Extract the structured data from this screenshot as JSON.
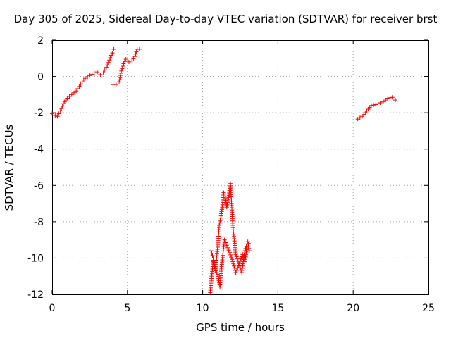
{
  "chart_data": {
    "type": "scatter",
    "title": "Day 305 of 2025, Sidereal Day-to-day VTEC variation (SDTVAR) for receiver brst",
    "xlabel": "GPS time / hours",
    "ylabel": "SDTVAR / TECUs",
    "xlim": [
      0,
      25
    ],
    "ylim": [
      -12,
      2
    ],
    "xticks": [
      0,
      5,
      10,
      15,
      20,
      25
    ],
    "yticks": [
      -12,
      -10,
      -8,
      -6,
      -4,
      -2,
      0,
      2
    ],
    "grid": true,
    "marker": "+",
    "color": "#ff0000",
    "series": [
      {
        "name": "SDTVAR",
        "segments": [
          {
            "x": [
              0.0,
              0.2,
              0.35,
              0.55,
              0.75,
              1.0,
              1.3,
              1.6,
              1.8,
              2.0,
              2.2,
              2.5,
              2.8,
              3.0,
              3.2,
              3.4,
              3.6,
              3.8,
              4.0,
              4.1
            ],
            "y": [
              -2.05,
              -2.15,
              -2.2,
              -1.9,
              -1.5,
              -1.2,
              -1.0,
              -0.8,
              -0.55,
              -0.3,
              -0.1,
              0.05,
              0.2,
              0.25,
              0.1,
              0.2,
              0.5,
              0.9,
              1.3,
              1.5
            ]
          },
          {
            "x": [
              4.05,
              4.25,
              4.45,
              4.6,
              4.75,
              4.9,
              5.1,
              5.3,
              5.5,
              5.65,
              5.8
            ],
            "y": [
              -0.45,
              -0.45,
              -0.3,
              0.3,
              0.7,
              0.95,
              0.8,
              0.85,
              1.1,
              1.5,
              1.5
            ]
          },
          {
            "x": [
              10.5,
              10.6,
              10.7,
              10.85,
              11.0,
              11.1,
              11.2,
              11.3,
              11.4,
              11.5,
              11.6,
              11.7,
              11.85,
              12.0,
              12.2,
              12.4,
              12.6,
              12.8,
              13.0,
              13.1
            ],
            "y": [
              -11.9,
              -11.0,
              -10.2,
              -10.6,
              -9.4,
              -8.2,
              -7.8,
              -7.2,
              -6.4,
              -6.6,
              -7.2,
              -6.8,
              -5.9,
              -8.2,
              -9.8,
              -10.3,
              -10.8,
              -9.6,
              -9.1,
              -9.6
            ]
          },
          {
            "x": [
              10.55,
              10.7,
              10.85,
              11.0,
              11.15,
              11.3,
              11.45,
              11.6,
              11.8,
              12.0,
              12.2,
              12.45,
              12.65,
              12.8,
              12.95,
              13.05
            ],
            "y": [
              -9.6,
              -10.0,
              -10.7,
              -10.9,
              -11.6,
              -10.1,
              -9.0,
              -9.3,
              -9.7,
              -10.2,
              -10.8,
              -10.3,
              -9.8,
              -10.2,
              -9.4,
              -9.2
            ]
          },
          {
            "x": [
              20.3,
              20.6,
              20.9,
              21.2,
              21.5,
              21.8,
              22.0,
              22.3,
              22.6,
              22.8
            ],
            "y": [
              -2.35,
              -2.2,
              -1.9,
              -1.6,
              -1.55,
              -1.45,
              -1.4,
              -1.2,
              -1.15,
              -1.3
            ]
          }
        ]
      }
    ]
  }
}
